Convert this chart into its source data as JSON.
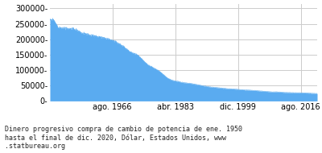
{
  "title": "Dinero progresivo compra de cambio de potencia de ene. 1950\nhasta el final de dic. 2020, Dólar, Estados Unidos, www\n.statbureau.org",
  "fill_color": "#5aabf0",
  "background_color": "#ffffff",
  "grid_color": "#cccccc",
  "line_color": "#5aabf0",
  "start_year": 1950,
  "end_year": 2020,
  "yticks": [
    0,
    50000,
    100000,
    150000,
    200000,
    250000,
    300000
  ],
  "ytick_labels": [
    "0-",
    "50000-",
    "100000-",
    "150000-",
    "200000-",
    "250000-",
    "300000-"
  ],
  "xtick_labels": [
    "ago. 1966",
    "abr. 1983",
    "dic. 1999",
    "ago. 2016"
  ],
  "ylim": [
    0,
    315000
  ],
  "figsize": [
    4.0,
    1.9
  ],
  "dpi": 100,
  "title_fontsize": 6.0,
  "tick_fontsize": 7.0
}
